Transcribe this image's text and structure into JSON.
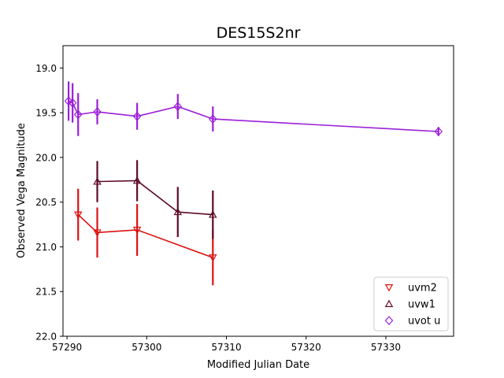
{
  "chart_data": {
    "type": "scatter",
    "title": "DES15S2nr",
    "xlabel": "Modified Julian Date",
    "ylabel": "Observed Vega Magnitude",
    "xlim": [
      57289.5,
      57338.5
    ],
    "ylim": [
      22.0,
      18.75
    ],
    "y_inverted": true,
    "grid": false,
    "legend_position": "bottom-right",
    "x_ticks": [
      57290,
      57300,
      57310,
      57320,
      57330
    ],
    "x_tick_labels": [
      "57290",
      "57300",
      "57310",
      "57320",
      "57330"
    ],
    "y_ticks": [
      19.0,
      19.5,
      20.0,
      20.5,
      21.0,
      21.5,
      22.0
    ],
    "y_tick_labels": [
      "19.0",
      "19.5",
      "20.0",
      "20.5",
      "21.0",
      "21.5",
      "22.0"
    ],
    "series": [
      {
        "name": "uvm2",
        "color": "#dd1111",
        "marker": "triangle-down",
        "points": [
          {
            "x": 57291.4,
            "y": 20.64,
            "err": 0.29
          },
          {
            "x": 57293.8,
            "y": 20.84,
            "err": 0.28
          },
          {
            "x": 57298.8,
            "y": 20.81,
            "err": 0.29
          },
          {
            "x": 57308.3,
            "y": 21.12,
            "err": 0.31
          }
        ]
      },
      {
        "name": "uvw1",
        "color": "#5e0b26",
        "marker": "triangle-up",
        "points": [
          {
            "x": 57293.8,
            "y": 20.27,
            "err": 0.23
          },
          {
            "x": 57298.8,
            "y": 20.26,
            "err": 0.23
          },
          {
            "x": 57303.9,
            "y": 20.61,
            "err": 0.28
          },
          {
            "x": 57308.3,
            "y": 20.64,
            "err": 0.27
          }
        ]
      },
      {
        "name": "uvot u",
        "color": "#9b1fd8",
        "marker": "diamond",
        "points": [
          {
            "x": 57290.2,
            "y": 19.37,
            "err": 0.22
          },
          {
            "x": 57290.7,
            "y": 19.39,
            "err": 0.22
          },
          {
            "x": 57291.4,
            "y": 19.52,
            "err": 0.24
          },
          {
            "x": 57293.8,
            "y": 19.49,
            "err": 0.14
          },
          {
            "x": 57298.8,
            "y": 19.54,
            "err": 0.15
          },
          {
            "x": 57303.9,
            "y": 19.43,
            "err": 0.14
          },
          {
            "x": 57308.3,
            "y": 19.57,
            "err": 0.14
          },
          {
            "x": 57336.6,
            "y": 19.71,
            "err": 0.05
          }
        ]
      }
    ]
  }
}
